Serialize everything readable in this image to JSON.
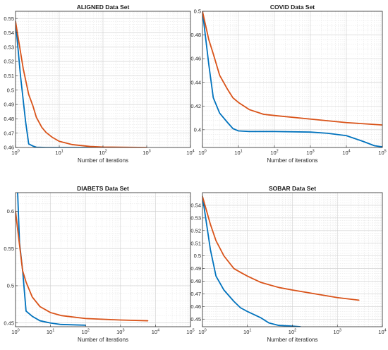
{
  "colors": {
    "series_blue": "#0072BD",
    "series_orange": "#D95319",
    "axis": "#262626",
    "grid": "#cfcfcf"
  },
  "chart_data": [
    {
      "type": "line",
      "title": "ALIGNED Data Set",
      "xlabel": "Number of iterations",
      "ylabel": "",
      "xscale": "log",
      "grid": "on (major and minor)",
      "xlim": [
        1,
        10000
      ],
      "ylim": [
        0.46,
        0.555
      ],
      "xticks": [
        {
          "base": "10",
          "exp": "0",
          "value": 1
        },
        {
          "base": "10",
          "exp": "1",
          "value": 10
        },
        {
          "base": "10",
          "exp": "2",
          "value": 100
        },
        {
          "base": "10",
          "exp": "3",
          "value": 1000
        },
        {
          "base": "10",
          "exp": "4",
          "value": 10000
        }
      ],
      "yticks": [
        {
          "label": "0.46",
          "value": 0.46
        },
        {
          "label": "0.47",
          "value": 0.47
        },
        {
          "label": "0.48",
          "value": 0.48
        },
        {
          "label": "0.49",
          "value": 0.49
        },
        {
          "label": "0.5",
          "value": 0.5
        },
        {
          "label": "0.51",
          "value": 0.51
        },
        {
          "label": "0.52",
          "value": 0.52
        },
        {
          "label": "0.53",
          "value": 0.53
        },
        {
          "label": "0.54",
          "value": 0.54
        },
        {
          "label": "0.55",
          "value": 0.55
        }
      ],
      "series": [
        {
          "color": "#0072BD",
          "x": [
            1,
            1.3,
            1.7,
            2,
            2.5,
            3,
            5,
            10,
            100,
            700
          ],
          "y": [
            0.548,
            0.51,
            0.478,
            0.4625,
            0.461,
            0.4602,
            0.46,
            0.46,
            0.46,
            0.46
          ]
        },
        {
          "color": "#D95319",
          "x": [
            1,
            1.5,
            2,
            2.5,
            3,
            4,
            5,
            7,
            10,
            20,
            50,
            100,
            1000
          ],
          "y": [
            0.548,
            0.515,
            0.497,
            0.489,
            0.481,
            0.474,
            0.4705,
            0.467,
            0.4643,
            0.462,
            0.4607,
            0.4603,
            0.46
          ]
        }
      ]
    },
    {
      "type": "line",
      "title": "COVID Data Set",
      "xlabel": "Number of iterations",
      "ylabel": "",
      "xscale": "log",
      "grid": "on (major and minor)",
      "xlim": [
        1,
        100000
      ],
      "ylim": [
        0.385,
        0.5
      ],
      "xticks": [
        {
          "base": "10",
          "exp": "0",
          "value": 1
        },
        {
          "base": "10",
          "exp": "1",
          "value": 10
        },
        {
          "base": "10",
          "exp": "2",
          "value": 100
        },
        {
          "base": "10",
          "exp": "3",
          "value": 1000
        },
        {
          "base": "10",
          "exp": "4",
          "value": 10000
        },
        {
          "base": "10",
          "exp": "5",
          "value": 100000
        }
      ],
      "yticks": [
        {
          "label": "0.4",
          "value": 0.4
        },
        {
          "label": "0.42",
          "value": 0.42
        },
        {
          "label": "0.44",
          "value": 0.44
        },
        {
          "label": "0.46",
          "value": 0.46
        },
        {
          "label": "0.48",
          "value": 0.48
        },
        {
          "label": "0.5",
          "value": 0.5
        }
      ],
      "series": [
        {
          "color": "#0072BD",
          "x": [
            1,
            1.5,
            2,
            3,
            5,
            7,
            10,
            20,
            100,
            1000,
            3000,
            10000,
            30000,
            60000,
            100000
          ],
          "y": [
            0.5,
            0.455,
            0.427,
            0.414,
            0.406,
            0.401,
            0.399,
            0.3985,
            0.3985,
            0.398,
            0.397,
            0.395,
            0.39,
            0.3865,
            0.3855
          ]
        },
        {
          "color": "#D95319",
          "x": [
            1,
            1.5,
            2,
            3,
            5,
            7,
            10,
            20,
            50,
            100,
            1000,
            10000,
            100000
          ],
          "y": [
            0.5,
            0.476,
            0.464,
            0.446,
            0.434,
            0.427,
            0.423,
            0.417,
            0.413,
            0.412,
            0.409,
            0.406,
            0.404
          ]
        }
      ]
    },
    {
      "type": "line",
      "title": "DIABETS Data Set",
      "xlabel": "Number of iterations",
      "ylabel": "",
      "xscale": "log",
      "grid": "on (major and minor)",
      "xlim": [
        1,
        100000
      ],
      "ylim": [
        0.445,
        0.625
      ],
      "xticks": [
        {
          "base": "10",
          "exp": "0",
          "value": 1
        },
        {
          "base": "10",
          "exp": "1",
          "value": 10
        },
        {
          "base": "10",
          "exp": "2",
          "value": 100
        },
        {
          "base": "10",
          "exp": "3",
          "value": 1000
        },
        {
          "base": "10",
          "exp": "4",
          "value": 10000
        },
        {
          "base": "10",
          "exp": "5",
          "value": 100000
        }
      ],
      "yticks": [
        {
          "label": "0.45",
          "value": 0.45
        },
        {
          "label": "0.5",
          "value": 0.5
        },
        {
          "label": "0.55",
          "value": 0.55
        },
        {
          "label": "0.6",
          "value": 0.6
        }
      ],
      "series": [
        {
          "color": "#0072BD",
          "x": [
            1.15,
            1.3,
            1.6,
            2,
            3,
            5,
            10,
            20,
            100
          ],
          "y": [
            0.625,
            0.558,
            0.52,
            0.466,
            0.459,
            0.453,
            0.45,
            0.448,
            0.447
          ]
        },
        {
          "color": "#D95319",
          "x": [
            1,
            1.3,
            1.6,
            2,
            3,
            5,
            10,
            20,
            100,
            1000,
            6000
          ],
          "y": [
            0.6,
            0.555,
            0.52,
            0.505,
            0.485,
            0.472,
            0.464,
            0.46,
            0.456,
            0.454,
            0.453
          ]
        }
      ]
    },
    {
      "type": "line",
      "title": "SOBAR Data Set",
      "xlabel": "Number of iterations",
      "ylabel": "",
      "xscale": "log",
      "grid": "on (major and minor)",
      "xlim": [
        1,
        10000
      ],
      "ylim": [
        0.444,
        0.55
      ],
      "xticks": [
        {
          "base": "10",
          "exp": "0",
          "value": 1
        },
        {
          "base": "10",
          "exp": "1",
          "value": 10
        },
        {
          "base": "10",
          "exp": "2",
          "value": 100
        },
        {
          "base": "10",
          "exp": "3",
          "value": 1000
        },
        {
          "base": "10",
          "exp": "4",
          "value": 10000
        }
      ],
      "yticks": [
        {
          "label": "0.45",
          "value": 0.45
        },
        {
          "label": "0.46",
          "value": 0.46
        },
        {
          "label": "0.47",
          "value": 0.47
        },
        {
          "label": "0.48",
          "value": 0.48
        },
        {
          "label": "0.49",
          "value": 0.49
        },
        {
          "label": "0.5",
          "value": 0.5
        },
        {
          "label": "0.51",
          "value": 0.51
        },
        {
          "label": "0.52",
          "value": 0.52
        },
        {
          "label": "0.53",
          "value": 0.53
        },
        {
          "label": "0.54",
          "value": 0.54
        }
      ],
      "series": [
        {
          "color": "#0072BD",
          "x": [
            1,
            1.5,
            2,
            3,
            5,
            7,
            10,
            20,
            30,
            50,
            100,
            150
          ],
          "y": [
            0.547,
            0.505,
            0.484,
            0.473,
            0.464,
            0.459,
            0.456,
            0.451,
            0.447,
            0.445,
            0.4445,
            0.444
          ]
        },
        {
          "color": "#D95319",
          "x": [
            1,
            1.5,
            2,
            3,
            5,
            7,
            10,
            20,
            50,
            100,
            1000,
            3000
          ],
          "y": [
            0.547,
            0.525,
            0.512,
            0.5,
            0.49,
            0.487,
            0.484,
            0.479,
            0.475,
            0.473,
            0.467,
            0.465
          ]
        }
      ]
    }
  ]
}
